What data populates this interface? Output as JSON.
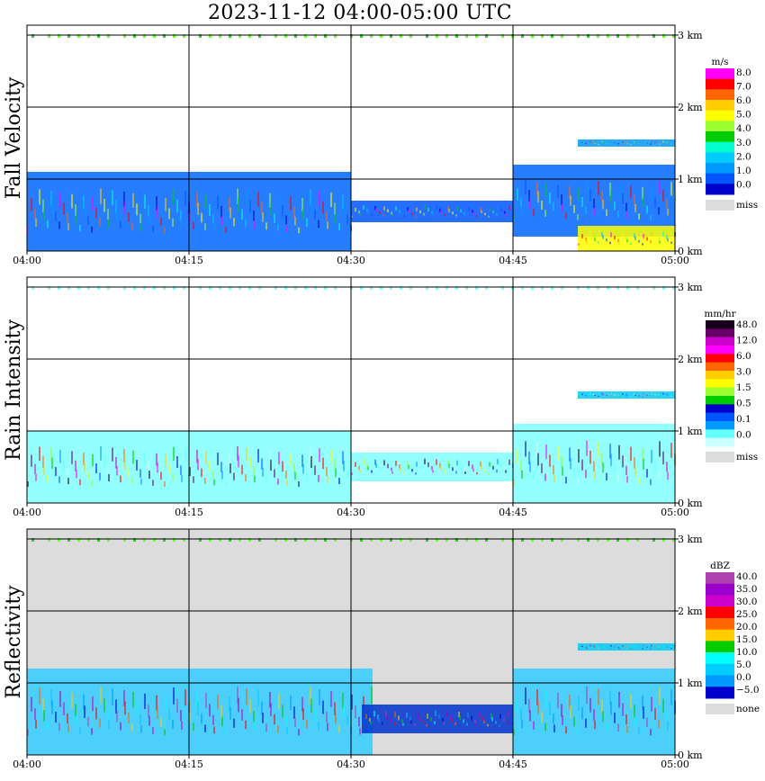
{
  "title": "2023-11-12   04:00-05:00 UTC",
  "colors": {
    "grid": "#000000",
    "missing": "#dcdcdc"
  },
  "chart_data": [
    {
      "type": "heatmap",
      "ylabel": "Fall Velocity",
      "x_ticks": [
        "04:00",
        "04:15",
        "04:30",
        "04:45",
        "05:00"
      ],
      "xlim": [
        0,
        60
      ],
      "x_units": "minutes after 04:00 UTC",
      "y_ticks": [
        "0 km",
        "1 km",
        "2 km",
        "3 km"
      ],
      "ylim": [
        0,
        3.0
      ],
      "background_missing": false,
      "colorbar": {
        "unit": "m/s",
        "labels": [
          "8.0",
          "7.0",
          "6.0",
          "5.0",
          "4.0",
          "3.0",
          "2.0",
          "1.0",
          "0.0",
          "miss"
        ],
        "colors": [
          "#ff00ff",
          "#ff0000",
          "#ff6600",
          "#ffcc00",
          "#ffff00",
          "#99ff33",
          "#00cc00",
          "#00ffcc",
          "#00ccff",
          "#0099ff",
          "#0055ff",
          "#0000cc"
        ]
      },
      "echo_regions": [
        {
          "t0": 0,
          "t1": 30,
          "h0": 0.0,
          "h1": 1.1,
          "fill": "#0066ff"
        },
        {
          "t0": 30,
          "t1": 45,
          "h0": 0.4,
          "h1": 0.7,
          "fill": "#0055ff"
        },
        {
          "t0": 45,
          "t1": 60,
          "h0": 0.2,
          "h1": 1.2,
          "fill": "#0066ff"
        },
        {
          "t0": 51,
          "t1": 60,
          "h0": 1.45,
          "h1": 1.55,
          "fill": "#0099ff"
        },
        {
          "t0": 51,
          "t1": 60,
          "h0": 0.0,
          "h1": 0.35,
          "fill": "#ffff00"
        }
      ]
    },
    {
      "type": "heatmap",
      "ylabel": "Rain Intensity",
      "x_ticks": [
        "04:00",
        "04:15",
        "04:30",
        "04:45",
        "05:00"
      ],
      "xlim": [
        0,
        60
      ],
      "x_units": "minutes after 04:00 UTC",
      "y_ticks": [
        "0 km",
        "1 km",
        "2 km",
        "3 km"
      ],
      "ylim": [
        0,
        3.0
      ],
      "background_missing": false,
      "colorbar": {
        "unit": "mm/hr",
        "labels": [
          "48.0",
          "12.0",
          "6.0",
          "3.0",
          "1.5",
          "0.5",
          "0.1",
          "0.0",
          "miss"
        ],
        "colors": [
          "#1a001a",
          "#660066",
          "#cc00cc",
          "#ff00ff",
          "#ff0000",
          "#ff6600",
          "#ffcc00",
          "#ffff00",
          "#99ff33",
          "#00cc00",
          "#0000cc",
          "#0055ff",
          "#0099ff",
          "#66ffff",
          "#ccffff"
        ]
      },
      "echo_regions": [
        {
          "t0": 0,
          "t1": 30,
          "h0": 0.0,
          "h1": 1.0,
          "fill": "#80ffff"
        },
        {
          "t0": 30,
          "t1": 45,
          "h0": 0.3,
          "h1": 0.7,
          "fill": "#80ffff"
        },
        {
          "t0": 45,
          "t1": 60,
          "h0": 0.0,
          "h1": 1.1,
          "fill": "#80ffff"
        },
        {
          "t0": 51,
          "t1": 60,
          "h0": 1.45,
          "h1": 1.55,
          "fill": "#00ccff"
        }
      ]
    },
    {
      "type": "heatmap",
      "ylabel": "Reflectivity",
      "x_ticks": [
        "04:00",
        "04:15",
        "04:30",
        "04:45",
        "05:00"
      ],
      "xlim": [
        0,
        60
      ],
      "x_units": "minutes after 04:00 UTC",
      "y_ticks": [
        "0 km",
        "1 km",
        "2 km",
        "3 km"
      ],
      "ylim": [
        0,
        3.0
      ],
      "background_missing": true,
      "colorbar": {
        "unit": "dBZ",
        "labels": [
          "40.0",
          "35.0",
          "30.0",
          "25.0",
          "20.0",
          "15.0",
          "10.0",
          "5.0",
          "0.0",
          "−5.0",
          "none"
        ],
        "colors": [
          "#b040b0",
          "#9900cc",
          "#cc00cc",
          "#ff0000",
          "#ff6600",
          "#ffcc00",
          "#00cc00",
          "#00ffff",
          "#00ccff",
          "#0099ff",
          "#0000cc"
        ]
      },
      "echo_regions": [
        {
          "t0": 0,
          "t1": 32,
          "h0": 0.0,
          "h1": 1.2,
          "fill": "#33ccff"
        },
        {
          "t0": 31,
          "t1": 45,
          "h0": 0.3,
          "h1": 0.7,
          "fill": "#0033cc"
        },
        {
          "t0": 45,
          "t1": 60,
          "h0": 0.0,
          "h1": 1.2,
          "fill": "#33ccff"
        },
        {
          "t0": 51,
          "t1": 60,
          "h0": 1.45,
          "h1": 1.55,
          "fill": "#00ccff"
        }
      ]
    }
  ]
}
